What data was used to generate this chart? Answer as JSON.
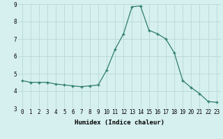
{
  "x": [
    0,
    1,
    2,
    3,
    4,
    5,
    6,
    7,
    8,
    9,
    10,
    11,
    12,
    13,
    14,
    15,
    16,
    17,
    18,
    19,
    20,
    21,
    22,
    23
  ],
  "y": [
    4.6,
    4.5,
    4.5,
    4.5,
    4.4,
    4.35,
    4.3,
    4.25,
    4.3,
    4.35,
    5.2,
    6.4,
    7.3,
    8.85,
    8.9,
    7.5,
    7.3,
    7.0,
    6.2,
    4.6,
    4.2,
    3.85,
    3.4,
    3.35
  ],
  "xlabel": "Humidex (Indice chaleur)",
  "ylim": [
    3,
    9
  ],
  "yticks": [
    3,
    4,
    5,
    6,
    7,
    8,
    9
  ],
  "xticks": [
    0,
    1,
    2,
    3,
    4,
    5,
    6,
    7,
    8,
    9,
    10,
    11,
    12,
    13,
    14,
    15,
    16,
    17,
    18,
    19,
    20,
    21,
    22,
    23
  ],
  "xtick_labels": [
    "0",
    "1",
    "2",
    "3",
    "4",
    "5",
    "6",
    "7",
    "8",
    "9",
    "10",
    "11",
    "12",
    "13",
    "14",
    "15",
    "16",
    "17",
    "18",
    "19",
    "20",
    "21",
    "22",
    "23"
  ],
  "line_color": "#2e7d6e",
  "marker": "+",
  "bg_color": "#d6f0ef",
  "grid_color": "#b8d8d6",
  "label_fontsize": 6.5,
  "tick_fontsize": 5.5
}
